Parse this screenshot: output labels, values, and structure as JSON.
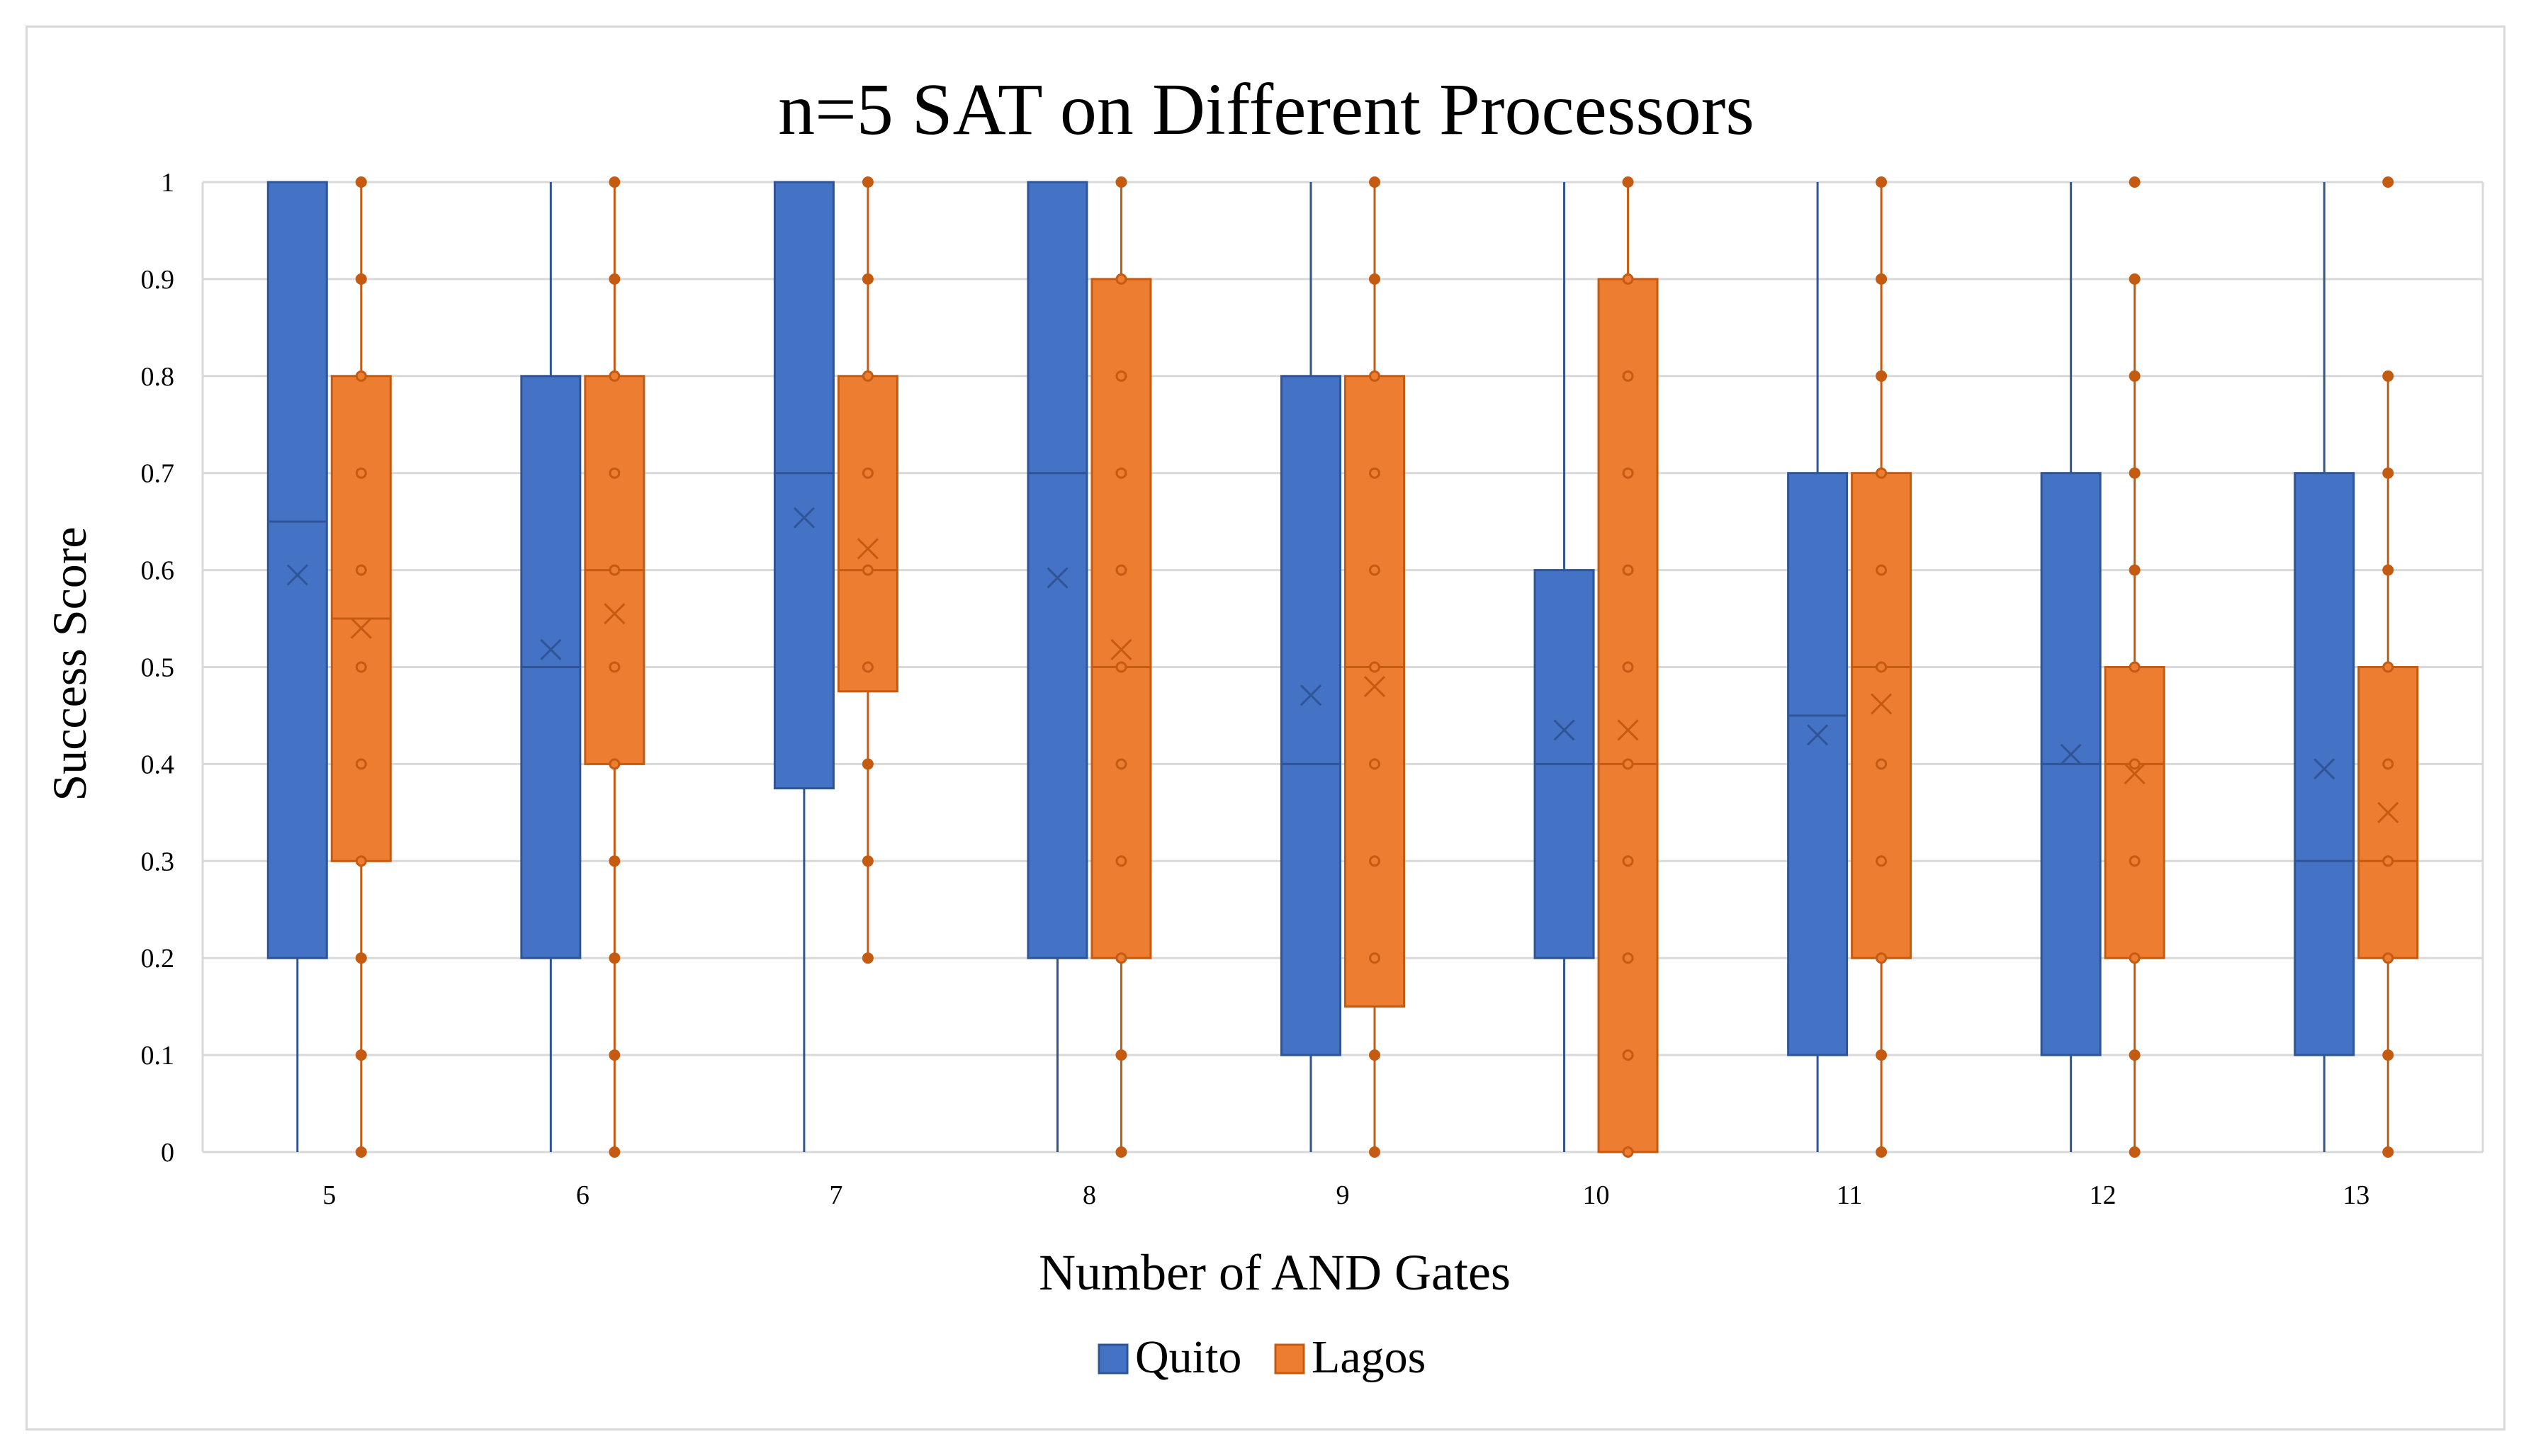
{
  "colors": {
    "quito": "#4472C4",
    "quito_edge": "#2F5597",
    "lagos": "#ED7D31",
    "lagos_edge": "#C55A11",
    "grid": "#d9d9d9",
    "text": "#000000"
  },
  "chart_data": {
    "type": "box",
    "title": "n=5 SAT on Different Processors",
    "xlabel": "Number of AND  Gates",
    "ylabel": "Success Score",
    "ylim": [
      0,
      1
    ],
    "yticks": [
      "0",
      "0.1",
      "0.2",
      "0.3",
      "0.4",
      "0.5",
      "0.6",
      "0.7",
      "0.8",
      "0.9",
      "1"
    ],
    "categories": [
      "5",
      "6",
      "7",
      "8",
      "9",
      "10",
      "11",
      "12",
      "13"
    ],
    "grid": true,
    "legend_position": "bottom",
    "series": [
      {
        "name": "Quito",
        "color": "#4472C4",
        "boxes": [
          {
            "min": 0,
            "q1": 0.2,
            "median": 0.65,
            "q3": 1.0,
            "max": 1.0,
            "mean": 0.595,
            "points": []
          },
          {
            "min": 0,
            "q1": 0.2,
            "median": 0.5,
            "q3": 0.8,
            "max": 1.0,
            "mean": 0.518,
            "points": []
          },
          {
            "min": 0,
            "q1": 0.375,
            "median": 0.7,
            "q3": 1.0,
            "max": 1.0,
            "mean": 0.654,
            "points": []
          },
          {
            "min": 0,
            "q1": 0.2,
            "median": 0.7,
            "q3": 1.0,
            "max": 1.0,
            "mean": 0.592,
            "points": []
          },
          {
            "min": 0,
            "q1": 0.1,
            "median": 0.4,
            "q3": 0.8,
            "max": 1.0,
            "mean": 0.471,
            "points": []
          },
          {
            "min": 0,
            "q1": 0.2,
            "median": 0.4,
            "q3": 0.6,
            "max": 1.0,
            "mean": 0.435,
            "points": []
          },
          {
            "min": 0,
            "q1": 0.1,
            "median": 0.45,
            "q3": 0.7,
            "max": 1.0,
            "mean": 0.43,
            "points": []
          },
          {
            "min": 0,
            "q1": 0.1,
            "median": 0.4,
            "q3": 0.7,
            "max": 1.0,
            "mean": 0.41,
            "points": []
          },
          {
            "min": 0,
            "q1": 0.1,
            "median": 0.3,
            "q3": 0.7,
            "max": 1.0,
            "mean": 0.395,
            "points": []
          }
        ]
      },
      {
        "name": "Lagos",
        "color": "#ED7D31",
        "boxes": [
          {
            "min": 0,
            "q1": 0.3,
            "median": 0.55,
            "q3": 0.8,
            "max": 1.0,
            "mean": 0.54,
            "points": [
              0,
              0.1,
              0.2,
              0.3,
              0.4,
              0.5,
              0.6,
              0.7,
              0.8,
              0.9,
              1.0
            ]
          },
          {
            "min": 0,
            "q1": 0.4,
            "median": 0.6,
            "q3": 0.8,
            "max": 1.0,
            "mean": 0.555,
            "points": [
              0,
              0.1,
              0.2,
              0.3,
              0.4,
              0.5,
              0.6,
              0.7,
              0.8,
              0.9,
              1.0
            ]
          },
          {
            "min": 0.2,
            "q1": 0.475,
            "median": 0.6,
            "q3": 0.8,
            "max": 1.0,
            "mean": 0.622,
            "points": [
              0.2,
              0.3,
              0.4,
              0.5,
              0.6,
              0.7,
              0.8,
              0.9,
              1.0
            ]
          },
          {
            "min": 0,
            "q1": 0.2,
            "median": 0.5,
            "q3": 0.9,
            "max": 1.0,
            "mean": 0.518,
            "points": [
              0,
              0.1,
              0.2,
              0.3,
              0.4,
              0.5,
              0.6,
              0.7,
              0.8,
              0.9,
              1.0
            ]
          },
          {
            "min": 0,
            "q1": 0.15,
            "median": 0.5,
            "q3": 0.8,
            "max": 1.0,
            "mean": 0.48,
            "points": [
              0,
              0.1,
              0.2,
              0.3,
              0.4,
              0.5,
              0.6,
              0.7,
              0.8,
              0.9,
              1.0
            ]
          },
          {
            "min": 0,
            "q1": 0,
            "median": 0.4,
            "q3": 0.9,
            "max": 1.0,
            "mean": 0.435,
            "points": [
              0,
              0.1,
              0.2,
              0.3,
              0.4,
              0.5,
              0.6,
              0.7,
              0.8,
              0.9,
              1.0
            ]
          },
          {
            "min": 0,
            "q1": 0.2,
            "median": 0.5,
            "q3": 0.7,
            "max": 1.0,
            "mean": 0.462,
            "points": [
              0,
              0.1,
              0.2,
              0.3,
              0.4,
              0.5,
              0.6,
              0.7,
              0.8,
              0.9,
              1.0
            ]
          },
          {
            "min": 0,
            "q1": 0.2,
            "median": 0.4,
            "q3": 0.5,
            "max": 0.9,
            "mean": 0.39,
            "points": [
              0,
              0.1,
              0.2,
              0.3,
              0.4,
              0.5,
              0.6,
              0.7,
              0.8,
              0.9,
              1.0
            ]
          },
          {
            "min": 0,
            "q1": 0.2,
            "median": 0.3,
            "q3": 0.5,
            "max": 0.8,
            "mean": 0.35,
            "points": [
              0,
              0.1,
              0.2,
              0.3,
              0.4,
              0.5,
              0.6,
              0.7,
              0.8,
              1.0
            ]
          }
        ]
      }
    ]
  }
}
